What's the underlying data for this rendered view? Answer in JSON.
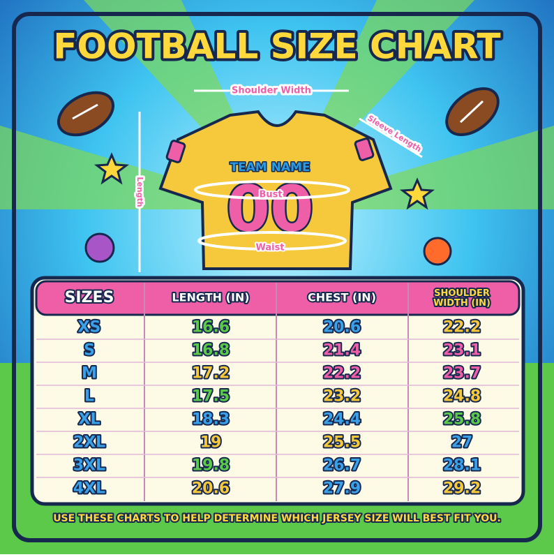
{
  "header": {
    "title": "FOOTBALL SIZE CHART"
  },
  "diagram": {
    "shoulder_width": "Shoulder Width",
    "sleeve_length": "Sleeve Length",
    "length": "Length",
    "bust": "Bust",
    "waist": "Waist",
    "team_name": "TEAM NAME",
    "number": "00"
  },
  "table": {
    "columns": [
      "SIZES",
      "LENGTH (IN)",
      "CHEST (IN)",
      "SHOULDER WIDTH (IN)"
    ],
    "rows": [
      [
        "XS",
        "16.6",
        "20.6",
        "22.2"
      ],
      [
        "S",
        "16.8",
        "21.4",
        "23.1"
      ],
      [
        "M",
        "17.2",
        "22.2",
        "23.7"
      ],
      [
        "L",
        "17.5",
        "23.2",
        "24.8"
      ],
      [
        "XL",
        "18.3",
        "24.4",
        "25.8"
      ],
      [
        "2XL",
        "19",
        "25.5",
        "27"
      ],
      [
        "3XL",
        "19.8",
        "26.7",
        "28.1"
      ],
      [
        "4XL",
        "20.6",
        "27.9",
        "29.2"
      ]
    ]
  },
  "footer": {
    "note": "USE THESE CHARTS TO HELP DETERMINE WHICH JERSEY SIZE WILL BEST FIT YOU."
  }
}
